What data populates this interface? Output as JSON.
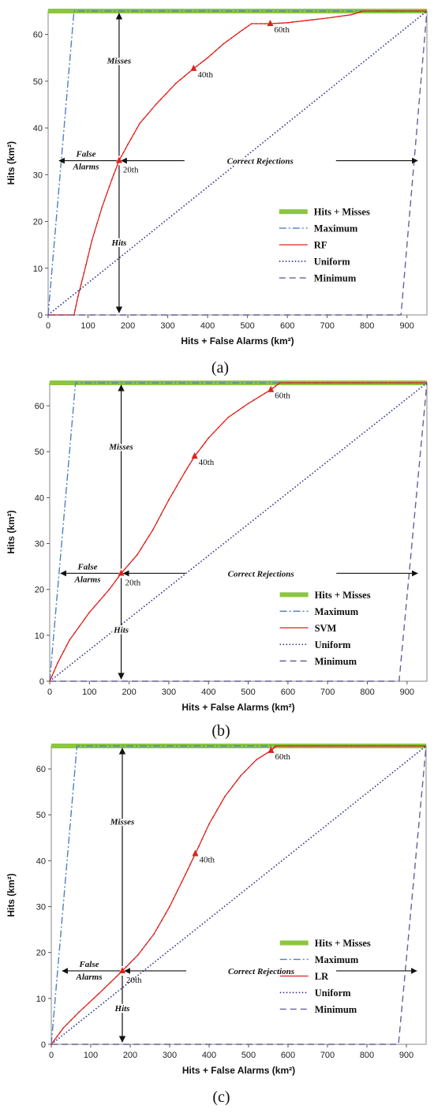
{
  "chart_data": [
    {
      "type": "line",
      "panel_label": "(a)",
      "panel_letter": "a",
      "xlabel": "Hits + False Alarms  (km²)",
      "ylabel": "Hits (km²)",
      "xlim": [
        0,
        950
      ],
      "ylim": [
        0,
        65
      ],
      "xticks": [
        0,
        100,
        200,
        300,
        400,
        500,
        600,
        700,
        800,
        900
      ],
      "yticks": [
        0,
        10,
        20,
        30,
        40,
        50,
        60
      ],
      "annotations": {
        "misses": "Misses",
        "hits": "Hits",
        "false_alarms_1": "False",
        "false_alarms_2": "Alarms",
        "correct_rejections": "Correct Rejections",
        "percentiles": [
          {
            "label": "20th",
            "x": 178,
            "y": 33
          },
          {
            "label": "40th",
            "x": 365,
            "y": 52.7
          },
          {
            "label": "60th",
            "x": 557,
            "y": 62.3
          }
        ]
      },
      "legend": [
        "Hits + Misses",
        "Maximum",
        "RF",
        "Uniform",
        "Minimum"
      ],
      "series": [
        {
          "name": "Hits + Misses",
          "x": [
            0,
            950
          ],
          "y": [
            65,
            65
          ]
        },
        {
          "name": "Maximum",
          "x": [
            0,
            65,
            950
          ],
          "y": [
            0,
            65,
            65
          ]
        },
        {
          "name": "RF",
          "x": [
            0,
            65,
            75,
            90,
            110,
            135,
            160,
            178,
            200,
            230,
            270,
            320,
            365,
            400,
            440,
            480,
            510,
            557,
            600,
            650,
            700,
            760,
            790,
            950
          ],
          "y": [
            0,
            0,
            4,
            9,
            16,
            23,
            29,
            33,
            36.5,
            41,
            45,
            49.5,
            52.7,
            55,
            58,
            60.5,
            62.3,
            62.3,
            62.5,
            63,
            63.5,
            64.2,
            65,
            65
          ]
        },
        {
          "name": "Uniform",
          "x": [
            0,
            950
          ],
          "y": [
            0,
            65
          ]
        },
        {
          "name": "Minimum",
          "x": [
            0,
            885,
            950
          ],
          "y": [
            0,
            0,
            65
          ]
        }
      ]
    },
    {
      "type": "line",
      "panel_label": "(b)",
      "panel_letter": "b",
      "xlabel": "Hits + False Alarms  (km²)",
      "ylabel": "Hits (km²)",
      "xlim": [
        0,
        950
      ],
      "ylim": [
        0,
        65
      ],
      "xticks": [
        0,
        100,
        200,
        300,
        400,
        500,
        600,
        700,
        800,
        900
      ],
      "yticks": [
        0,
        10,
        20,
        30,
        40,
        50,
        60
      ],
      "annotations": {
        "misses": "Misses",
        "hits": "Hits",
        "false_alarms_1": "False",
        "false_alarms_2": "Alarms",
        "correct_rejections": "Correct Rejections",
        "percentiles": [
          {
            "label": "20th",
            "x": 180,
            "y": 23.5
          },
          {
            "label": "40th",
            "x": 365,
            "y": 49
          },
          {
            "label": "60th",
            "x": 557,
            "y": 63.5
          }
        ]
      },
      "legend": [
        "Hits + Misses",
        "Maximum",
        "SVM",
        "Uniform",
        "Minimum"
      ],
      "series": [
        {
          "name": "Hits + Misses",
          "x": [
            0,
            950
          ],
          "y": [
            65,
            65
          ]
        },
        {
          "name": "Maximum",
          "x": [
            0,
            65,
            950
          ],
          "y": [
            0,
            65,
            65
          ]
        },
        {
          "name": "SVM",
          "x": [
            0,
            20,
            50,
            100,
            150,
            180,
            220,
            260,
            300,
            340,
            365,
            400,
            450,
            500,
            557,
            580,
            950
          ],
          "y": [
            0,
            4,
            9,
            15,
            20,
            23.5,
            27.5,
            33,
            39.5,
            45.5,
            49,
            53,
            57.5,
            60.5,
            63.5,
            65,
            65
          ]
        },
        {
          "name": "Uniform",
          "x": [
            0,
            950
          ],
          "y": [
            0,
            65
          ]
        },
        {
          "name": "Minimum",
          "x": [
            0,
            880,
            950
          ],
          "y": [
            0,
            0,
            65
          ]
        }
      ]
    },
    {
      "type": "line",
      "panel_label": "(c)",
      "panel_letter": "c",
      "xlabel": "Hits + False Alarms  (km²)",
      "ylabel": "Hits (km²)",
      "xlim": [
        0,
        950
      ],
      "ylim": [
        0,
        65
      ],
      "xticks": [
        0,
        100,
        200,
        300,
        400,
        500,
        600,
        700,
        800,
        900
      ],
      "yticks": [
        0,
        10,
        20,
        30,
        40,
        50,
        60
      ],
      "annotations": {
        "misses": "Misses",
        "hits": "Hits",
        "false_alarms_1": "False",
        "false_alarms_2": "Alarms",
        "correct_rejections": "Correct Rejections",
        "percentiles": [
          {
            "label": "20th",
            "x": 180,
            "y": 16
          },
          {
            "label": "40th",
            "x": 365,
            "y": 41.5
          },
          {
            "label": "60th",
            "x": 557,
            "y": 64
          }
        ]
      },
      "legend": [
        "Hits + Misses",
        "Maximum",
        "LR",
        "Uniform",
        "Minimum"
      ],
      "series": [
        {
          "name": "Hits + Misses",
          "x": [
            0,
            950
          ],
          "y": [
            65,
            65
          ]
        },
        {
          "name": "Maximum",
          "x": [
            0,
            65,
            950
          ],
          "y": [
            0,
            65,
            65
          ]
        },
        {
          "name": "LR",
          "x": [
            0,
            30,
            70,
            120,
            180,
            220,
            260,
            300,
            340,
            365,
            400,
            440,
            480,
            520,
            557,
            570,
            950
          ],
          "y": [
            0,
            3.5,
            7,
            11,
            16,
            19.5,
            24,
            30,
            37,
            41.5,
            48,
            54,
            58.5,
            62,
            64,
            65,
            65
          ]
        },
        {
          "name": "Uniform",
          "x": [
            0,
            950
          ],
          "y": [
            0,
            65
          ]
        },
        {
          "name": "Minimum",
          "x": [
            0,
            880,
            950
          ],
          "y": [
            0,
            0,
            65
          ]
        }
      ]
    }
  ],
  "colors": {
    "hits_misses": "#8cc63f",
    "maximum": "#4f81bd",
    "model": "#e0201b",
    "uniform": "#2b2f8c",
    "minimum": "#6a5f9a",
    "model_marker": "#e0201b"
  }
}
